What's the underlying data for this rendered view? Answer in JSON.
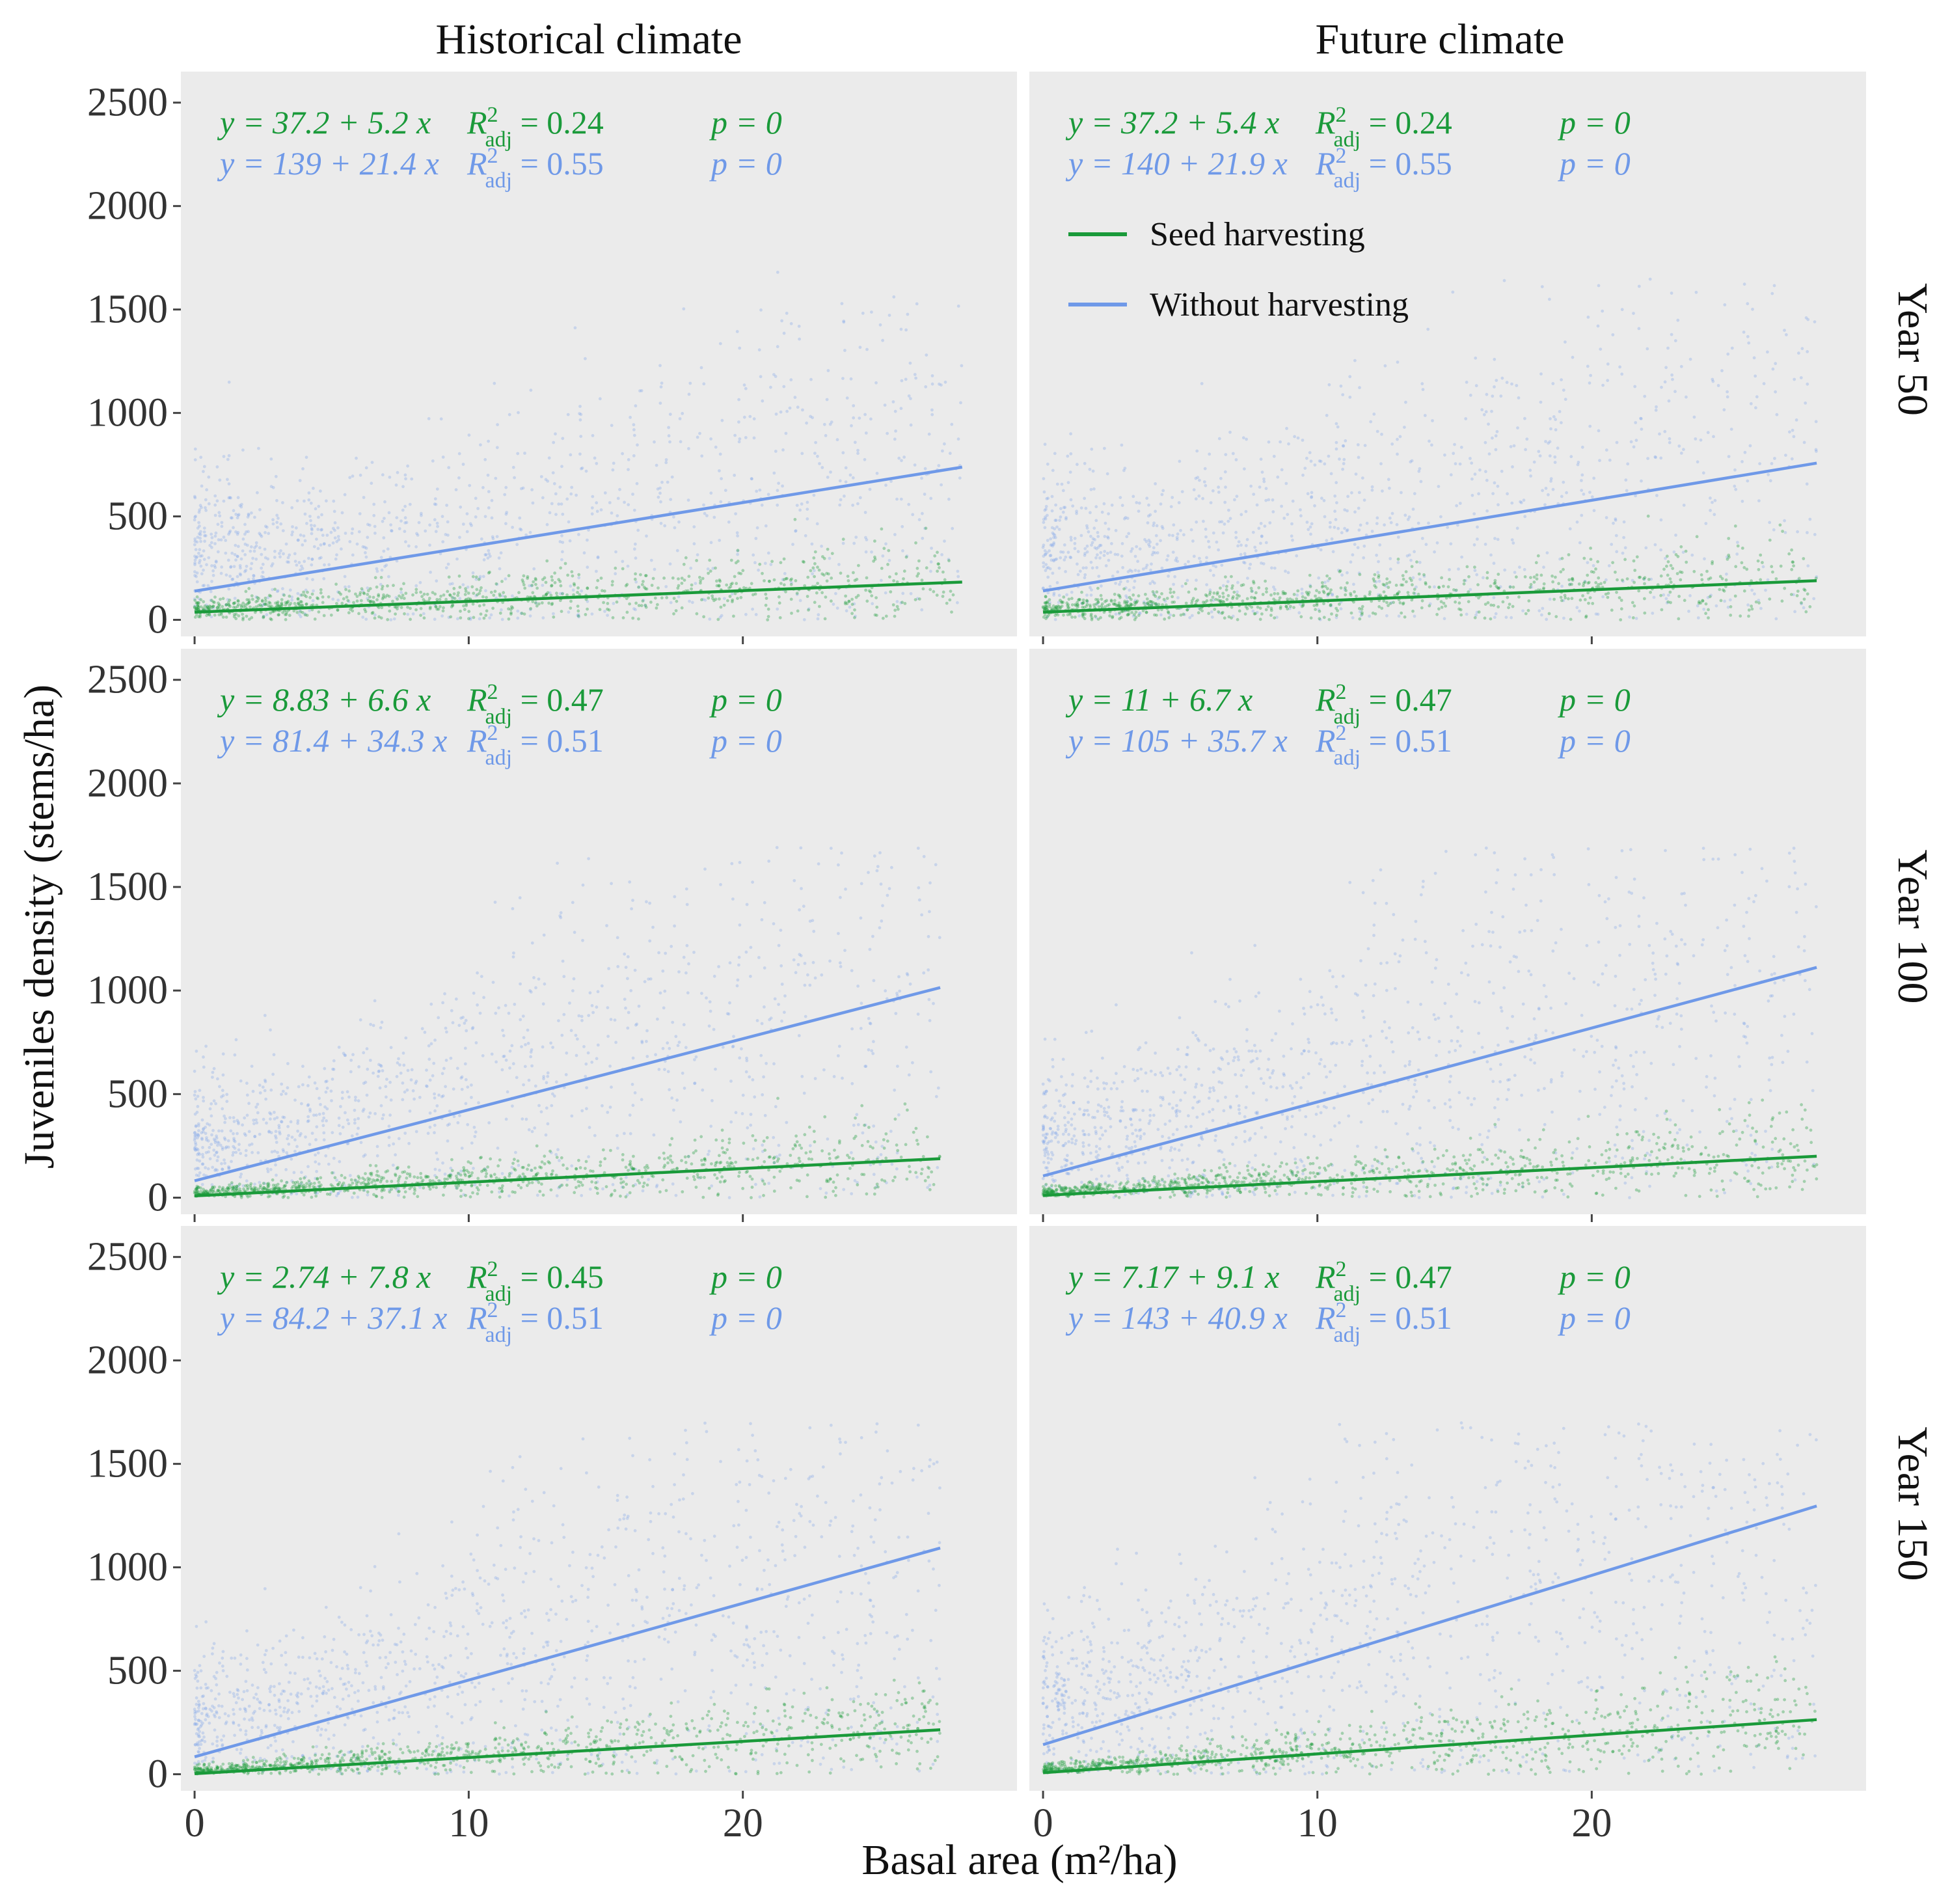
{
  "chart_data": {
    "type": "scatter",
    "xlabel": "Basal area (m²/ha)",
    "ylabel": "Juveniles density (stems/ha)",
    "columns": [
      "Historical climate",
      "Future climate"
    ],
    "rows": [
      "Year 50",
      "Year 100",
      "Year 150"
    ],
    "xlim": [
      -0.5,
      30
    ],
    "ylim": [
      -80,
      2650
    ],
    "xticks": [
      "0",
      "10",
      "20"
    ],
    "yticks": [
      "0",
      "500",
      "1000",
      "1500",
      "2000",
      "2500"
    ],
    "legend": {
      "position": "inside top of Year 50 / Future climate panel",
      "entries": [
        {
          "label": "Seed harvesting",
          "color": "#1a9a3a"
        },
        {
          "label": "Without harvesting",
          "color": "#6f99e8"
        }
      ]
    },
    "colors": {
      "seed": "#1a9a3a",
      "without": "#6f99e8",
      "panel": "#ebebeb"
    },
    "panels": [
      {
        "row": "Year 50",
        "col": "Historical climate",
        "xmax": 28,
        "seed": {
          "eq": "y = 37.2 + 5.2 x",
          "r2": "= 0.24",
          "p": "p = 0",
          "intercept": 37.2,
          "slope": 5.2
        },
        "without": {
          "eq": "y = 139 + 21.4 x",
          "r2": "= 0.55",
          "p": "p = 0",
          "intercept": 139,
          "slope": 21.4
        }
      },
      {
        "row": "Year 50",
        "col": "Future climate",
        "xmax": 28.2,
        "seed": {
          "eq": "y = 37.2 + 5.4 x",
          "r2": "= 0.24",
          "p": "p = 0",
          "intercept": 37.2,
          "slope": 5.4
        },
        "without": {
          "eq": "y = 140 + 21.9 x",
          "r2": "= 0.55",
          "p": "p = 0",
          "intercept": 140,
          "slope": 21.9
        }
      },
      {
        "row": "Year 100",
        "col": "Historical climate",
        "xmax": 27.2,
        "seed": {
          "eq": "y = 8.83 + 6.6 x",
          "r2": "= 0.47",
          "p": "p = 0",
          "intercept": 8.83,
          "slope": 6.6
        },
        "without": {
          "eq": "y = 81.4 + 34.3 x",
          "r2": "= 0.51",
          "p": "p = 0",
          "intercept": 81.4,
          "slope": 34.3
        }
      },
      {
        "row": "Year 100",
        "col": "Future climate",
        "xmax": 28.2,
        "seed": {
          "eq": "y = 11 + 6.7 x",
          "r2": "= 0.47",
          "p": "p = 0",
          "intercept": 11,
          "slope": 6.7
        },
        "without": {
          "eq": "y = 105 + 35.7 x",
          "r2": "= 0.51",
          "p": "p = 0",
          "intercept": 105,
          "slope": 35.7
        }
      },
      {
        "row": "Year 150",
        "col": "Historical climate",
        "xmax": 27.2,
        "seed": {
          "eq": "y = 2.74 + 7.8 x",
          "r2": "= 0.45",
          "p": "p = 0",
          "intercept": 2.74,
          "slope": 7.8
        },
        "without": {
          "eq": "y = 84.2 + 37.1 x",
          "r2": "= 0.51",
          "p": "p = 0",
          "intercept": 84.2,
          "slope": 37.1
        }
      },
      {
        "row": "Year 150",
        "col": "Future climate",
        "xmax": 28.2,
        "seed": {
          "eq": "y = 7.17 + 9.1 x",
          "r2": "= 0.47",
          "p": "p = 0",
          "intercept": 7.17,
          "slope": 9.1
        },
        "without": {
          "eq": "y = 143 + 40.9 x",
          "r2": "= 0.51",
          "p": "p = 0",
          "intercept": 143,
          "slope": 40.9
        }
      }
    ]
  }
}
